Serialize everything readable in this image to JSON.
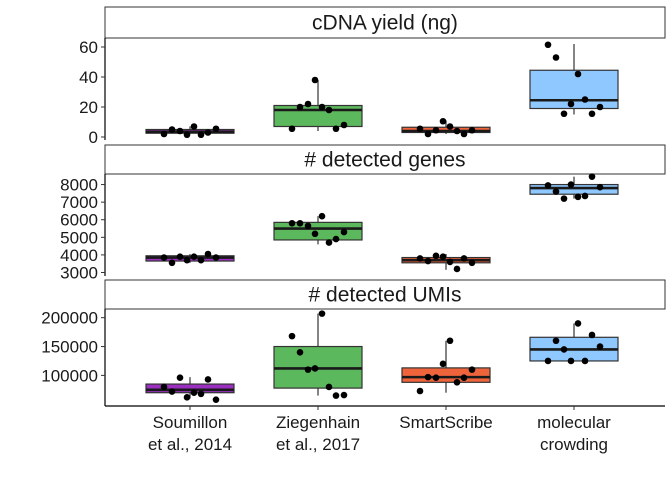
{
  "chart_data": {
    "type": "box",
    "categories": [
      {
        "id": "soumillon",
        "lines": [
          "Soumillon",
          "et al., 2014"
        ],
        "color": "#9b30c0"
      },
      {
        "id": "ziegenhain",
        "lines": [
          "Ziegenhain",
          "et al., 2017"
        ],
        "color": "#5cb85c"
      },
      {
        "id": "smartscribe",
        "lines": [
          "SmartScribe"
        ],
        "color": "#f0643c"
      },
      {
        "id": "crowding",
        "lines": [
          "molecular",
          "crowding"
        ],
        "color": "#8ec8ff"
      }
    ],
    "panels": [
      {
        "title": "cDNA yield (ng)",
        "ylim": [
          -2,
          66
        ],
        "yticks": [
          0,
          20,
          40,
          60
        ],
        "ytick_labels": [
          "0",
          "20",
          "40",
          "60"
        ],
        "boxes": [
          {
            "lower_whisker": 2,
            "q1": 2.5,
            "median": 3.5,
            "q3": 5,
            "upper_whisker": 7,
            "points": [
              2,
              5,
              4,
              1.5,
              7,
              1.5,
              3,
              5.5
            ]
          },
          {
            "lower_whisker": 4,
            "q1": 7,
            "median": 18,
            "q3": 21,
            "upper_whisker": 38,
            "points": [
              5.5,
              20,
              22,
              38,
              20,
              18,
              5.5,
              8
            ]
          },
          {
            "lower_whisker": 2,
            "q1": 3,
            "median": 4,
            "q3": 6.5,
            "upper_whisker": 11,
            "points": [
              5.5,
              2,
              4.5,
              10.5,
              7,
              4,
              2,
              4.5
            ]
          },
          {
            "lower_whisker": 15,
            "q1": 19,
            "median": 24.5,
            "q3": 44.5,
            "upper_whisker": 62,
            "points": [
              61.5,
              53,
              15.5,
              22,
              42,
              25,
              15.5,
              20
            ]
          }
        ]
      },
      {
        "title": "# detected genes",
        "ylim": [
          2800,
          8600
        ],
        "yticks": [
          3000,
          4000,
          5000,
          6000,
          7000,
          8000
        ],
        "ytick_labels": [
          "3000",
          "4000",
          "5000",
          "6000",
          "7000",
          "8000"
        ],
        "boxes": [
          {
            "lower_whisker": 3550,
            "q1": 3650,
            "median": 3850,
            "q3": 3950,
            "upper_whisker": 4050,
            "points": [
              3850,
              3550,
              3900,
              3700,
              3900,
              3700,
              4050,
              3850
            ]
          },
          {
            "lower_whisker": 4600,
            "q1": 4850,
            "median": 5500,
            "q3": 5850,
            "upper_whisker": 6200,
            "points": [
              5800,
              5800,
              5650,
              5200,
              6200,
              4700,
              4900,
              5300
            ]
          },
          {
            "lower_whisker": 3150,
            "q1": 3550,
            "median": 3700,
            "q3": 3850,
            "upper_whisker": 4050,
            "points": [
              3800,
              3650,
              3950,
              3900,
              3600,
              3200,
              3800,
              3550
            ]
          },
          {
            "lower_whisker": 7200,
            "q1": 7450,
            "median": 7800,
            "q3": 8000,
            "upper_whisker": 8450,
            "points": [
              7950,
              7600,
              7200,
              8000,
              7300,
              7350,
              8450,
              7850
            ]
          }
        ]
      },
      {
        "title": "# detected UMIs",
        "ylim": [
          47000,
          215000
        ],
        "yticks": [
          100000,
          150000,
          200000
        ],
        "ytick_labels": [
          "100000",
          "150000",
          "200000"
        ],
        "boxes": [
          {
            "lower_whisker": 60000,
            "q1": 70000,
            "median": 75000,
            "q3": 85000,
            "upper_whisker": 97000,
            "points": [
              80000,
              72000,
              96000,
              62000,
              70000,
              68000,
              93000,
              58000
            ]
          },
          {
            "lower_whisker": 65000,
            "q1": 78000,
            "median": 112000,
            "q3": 150000,
            "upper_whisker": 207000,
            "points": [
              168000,
              140000,
              110000,
              112000,
              207000,
              80000,
              65000,
              66000
            ]
          },
          {
            "lower_whisker": 70000,
            "q1": 88000,
            "median": 97000,
            "q3": 113000,
            "upper_whisker": 160000,
            "points": [
              73000,
              97000,
              96000,
              120000,
              160000,
              88000,
              96000,
              110000
            ]
          },
          {
            "lower_whisker": 125000,
            "q1": 125000,
            "median": 145000,
            "q3": 166000,
            "upper_whisker": 190000,
            "points": [
              125000,
              160000,
              145000,
              125000,
              190000,
              125000,
              170000,
              150000
            ]
          }
        ]
      }
    ]
  }
}
